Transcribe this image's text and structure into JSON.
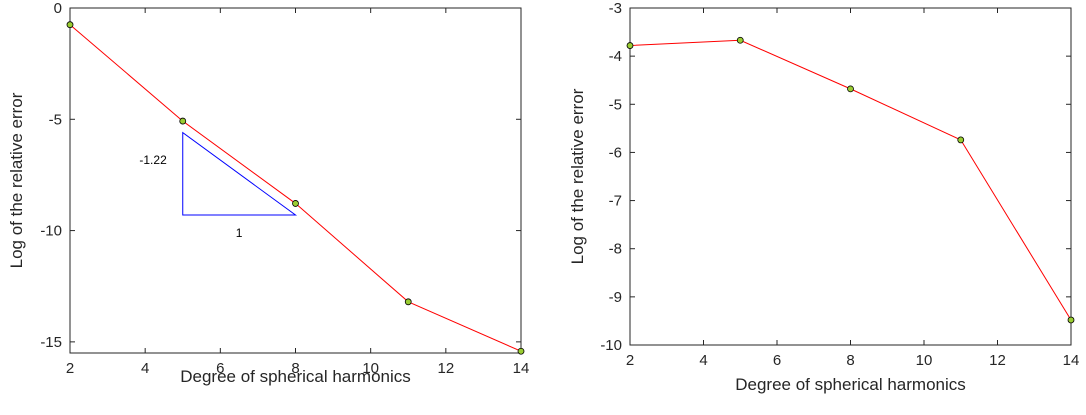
{
  "chart_data": [
    {
      "type": "line",
      "xlabel": "Degree of spherical harmonics",
      "ylabel": "Log of the relative error",
      "xlim": [
        2,
        14
      ],
      "ylim": [
        -15.5,
        0
      ],
      "xticks": [
        2,
        4,
        6,
        8,
        10,
        12,
        14
      ],
      "xtick_labels": [
        "2",
        "4",
        "6",
        "8",
        "10",
        "12",
        "14"
      ],
      "yticks": [
        0,
        -5,
        -10,
        -15
      ],
      "ytick_labels": [
        "0",
        "-5",
        "-10",
        "-15"
      ],
      "grid": false,
      "series": [
        {
          "x": [
            2,
            5,
            8,
            11,
            14
          ],
          "y": [
            -0.75,
            -5.08,
            -8.78,
            -13.2,
            -15.42
          ],
          "color": "#ff0000",
          "marker_fill": "#9acd32"
        }
      ],
      "annotation": {
        "type": "slope-triangle",
        "x": [
          5,
          8
        ],
        "y": [
          -5.6,
          -9.3
        ],
        "slope_label": "-1.22",
        "run_label": "1",
        "color": "#0000ff"
      }
    },
    {
      "type": "line",
      "xlabel": "Degree of spherical harmonics",
      "ylabel": "Log of the relative error",
      "xlim": [
        2,
        14
      ],
      "ylim": [
        -10,
        -3
      ],
      "xticks": [
        2,
        4,
        6,
        8,
        10,
        12,
        14
      ],
      "xtick_labels": [
        "2",
        "4",
        "6",
        "8",
        "10",
        "12",
        "14"
      ],
      "yticks": [
        -3,
        -4,
        -5,
        -6,
        -7,
        -8,
        -9,
        -10
      ],
      "ytick_labels": [
        "-3",
        "-4",
        "-5",
        "-6",
        "-7",
        "-8",
        "-9",
        "-10"
      ],
      "grid": false,
      "series": [
        {
          "x": [
            2,
            5,
            8,
            11,
            14
          ],
          "y": [
            -3.78,
            -3.67,
            -4.68,
            -5.74,
            -9.48
          ],
          "color": "#ff0000",
          "marker_fill": "#9acd32"
        }
      ]
    }
  ]
}
